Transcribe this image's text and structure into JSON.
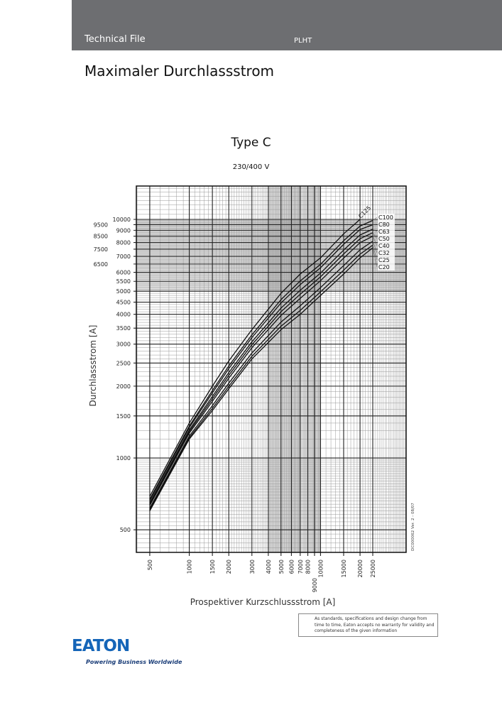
{
  "header": {
    "section": "Technical File",
    "code": "PLHT"
  },
  "page_title": "Maximaler Durchlassstrom",
  "chart_data": {
    "type": "line",
    "title": "Type C",
    "subtitle": "230/400 V",
    "xlabel": "Prospektiver Kurzschlussstrom [A]",
    "ylabel": "Durchlassstrom  [A]",
    "xscale": "log",
    "yscale": "log",
    "xlim": [
      395,
      44900
    ],
    "ylim": [
      402,
      13800
    ],
    "grid": true,
    "shaded_bands": {
      "x": [
        4000,
        7000
      ],
      "y": [
        5000,
        10000
      ]
    },
    "xticks": [
      500,
      1000,
      1500,
      2000,
      3000,
      4000,
      5000,
      6000,
      7000,
      8000,
      9000,
      10000,
      15000,
      20000,
      25000
    ],
    "yticks": [
      500,
      1000,
      1500,
      2000,
      2500,
      3000,
      3500,
      4000,
      4500,
      5000,
      5500,
      6000,
      6500,
      7000,
      7500,
      8000,
      8500,
      9000,
      9500,
      10000
    ],
    "x": [
      500,
      1000,
      1500,
      2000,
      3000,
      5000,
      7000,
      10000,
      15000,
      20000,
      25000
    ],
    "series": [
      {
        "name": "C125",
        "values": [
          690,
          1400,
          2000,
          2550,
          3450,
          4900,
          5900,
          6900,
          8700,
          10000,
          null
        ]
      },
      {
        "name": "C100",
        "values": [
          672,
          1360,
          1916,
          2430,
          3280,
          4610,
          5520,
          6480,
          8140,
          9380,
          9900
        ]
      },
      {
        "name": "C80",
        "values": [
          663,
          1340,
          1874,
          2370,
          3195,
          4465,
          5330,
          6270,
          7860,
          9070,
          9500
        ]
      },
      {
        "name": "C63",
        "values": [
          650,
          1310,
          1811,
          2280,
          3068,
          4248,
          5045,
          5955,
          7440,
          8605,
          9100
        ]
      },
      {
        "name": "C50",
        "values": [
          640,
          1290,
          1769,
          2220,
          2983,
          4103,
          4855,
          5745,
          7160,
          8295,
          8800
        ]
      },
      {
        "name": "C40",
        "values": [
          632,
          1270,
          1727,
          2160,
          2898,
          3958,
          4665,
          5535,
          6880,
          7985,
          8500
        ]
      },
      {
        "name": "C32",
        "values": [
          616,
          1236,
          1656,
          2058,
          2753,
          3711,
          4342,
          5178,
          6404,
          7458,
          8100
        ]
      },
      {
        "name": "C25",
        "values": [
          607,
          1216,
          1614,
          1998,
          2668,
          3566,
          4152,
          4968,
          6124,
          7148,
          7800
        ]
      },
      {
        "name": "C20",
        "values": [
          600,
          1200,
          1580,
          1950,
          2600,
          3450,
          4000,
          4800,
          5900,
          6900,
          7600
        ]
      }
    ],
    "doc_id": "DC000062  Ver. 2 - 08/07"
  },
  "footer": {
    "disclaimer": "As standards, specifications and design change from time to time, Eaton accepts no warranty for validity and completeness of the given information",
    "logo": "EATON",
    "tagline": "Powering Business Worldwide"
  }
}
